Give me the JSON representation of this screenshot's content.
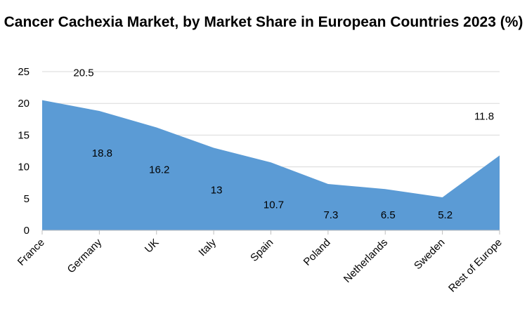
{
  "chart_data": {
    "type": "area",
    "title": "Cancer Cachexia Market, by Market Share in European Countries 2023 (%)",
    "categories": [
      "France",
      "Germany",
      "UK",
      "Italy",
      "Spain",
      "Poland",
      "Netherlands",
      "Sweden",
      "Rest of Europe"
    ],
    "values": [
      20.5,
      18.8,
      16.2,
      13,
      10.7,
      7.3,
      6.5,
      5.2,
      11.8
    ],
    "data_labels": [
      "20.5",
      "18.8",
      "16.2",
      "13",
      "10.7",
      "7.3",
      "6.5",
      "5.2",
      "11.8"
    ],
    "ylim": [
      0,
      25
    ],
    "yticks": [
      "0",
      "5",
      "10",
      "15",
      "20",
      "25"
    ],
    "grid": true,
    "color": "#5b9bd5"
  }
}
